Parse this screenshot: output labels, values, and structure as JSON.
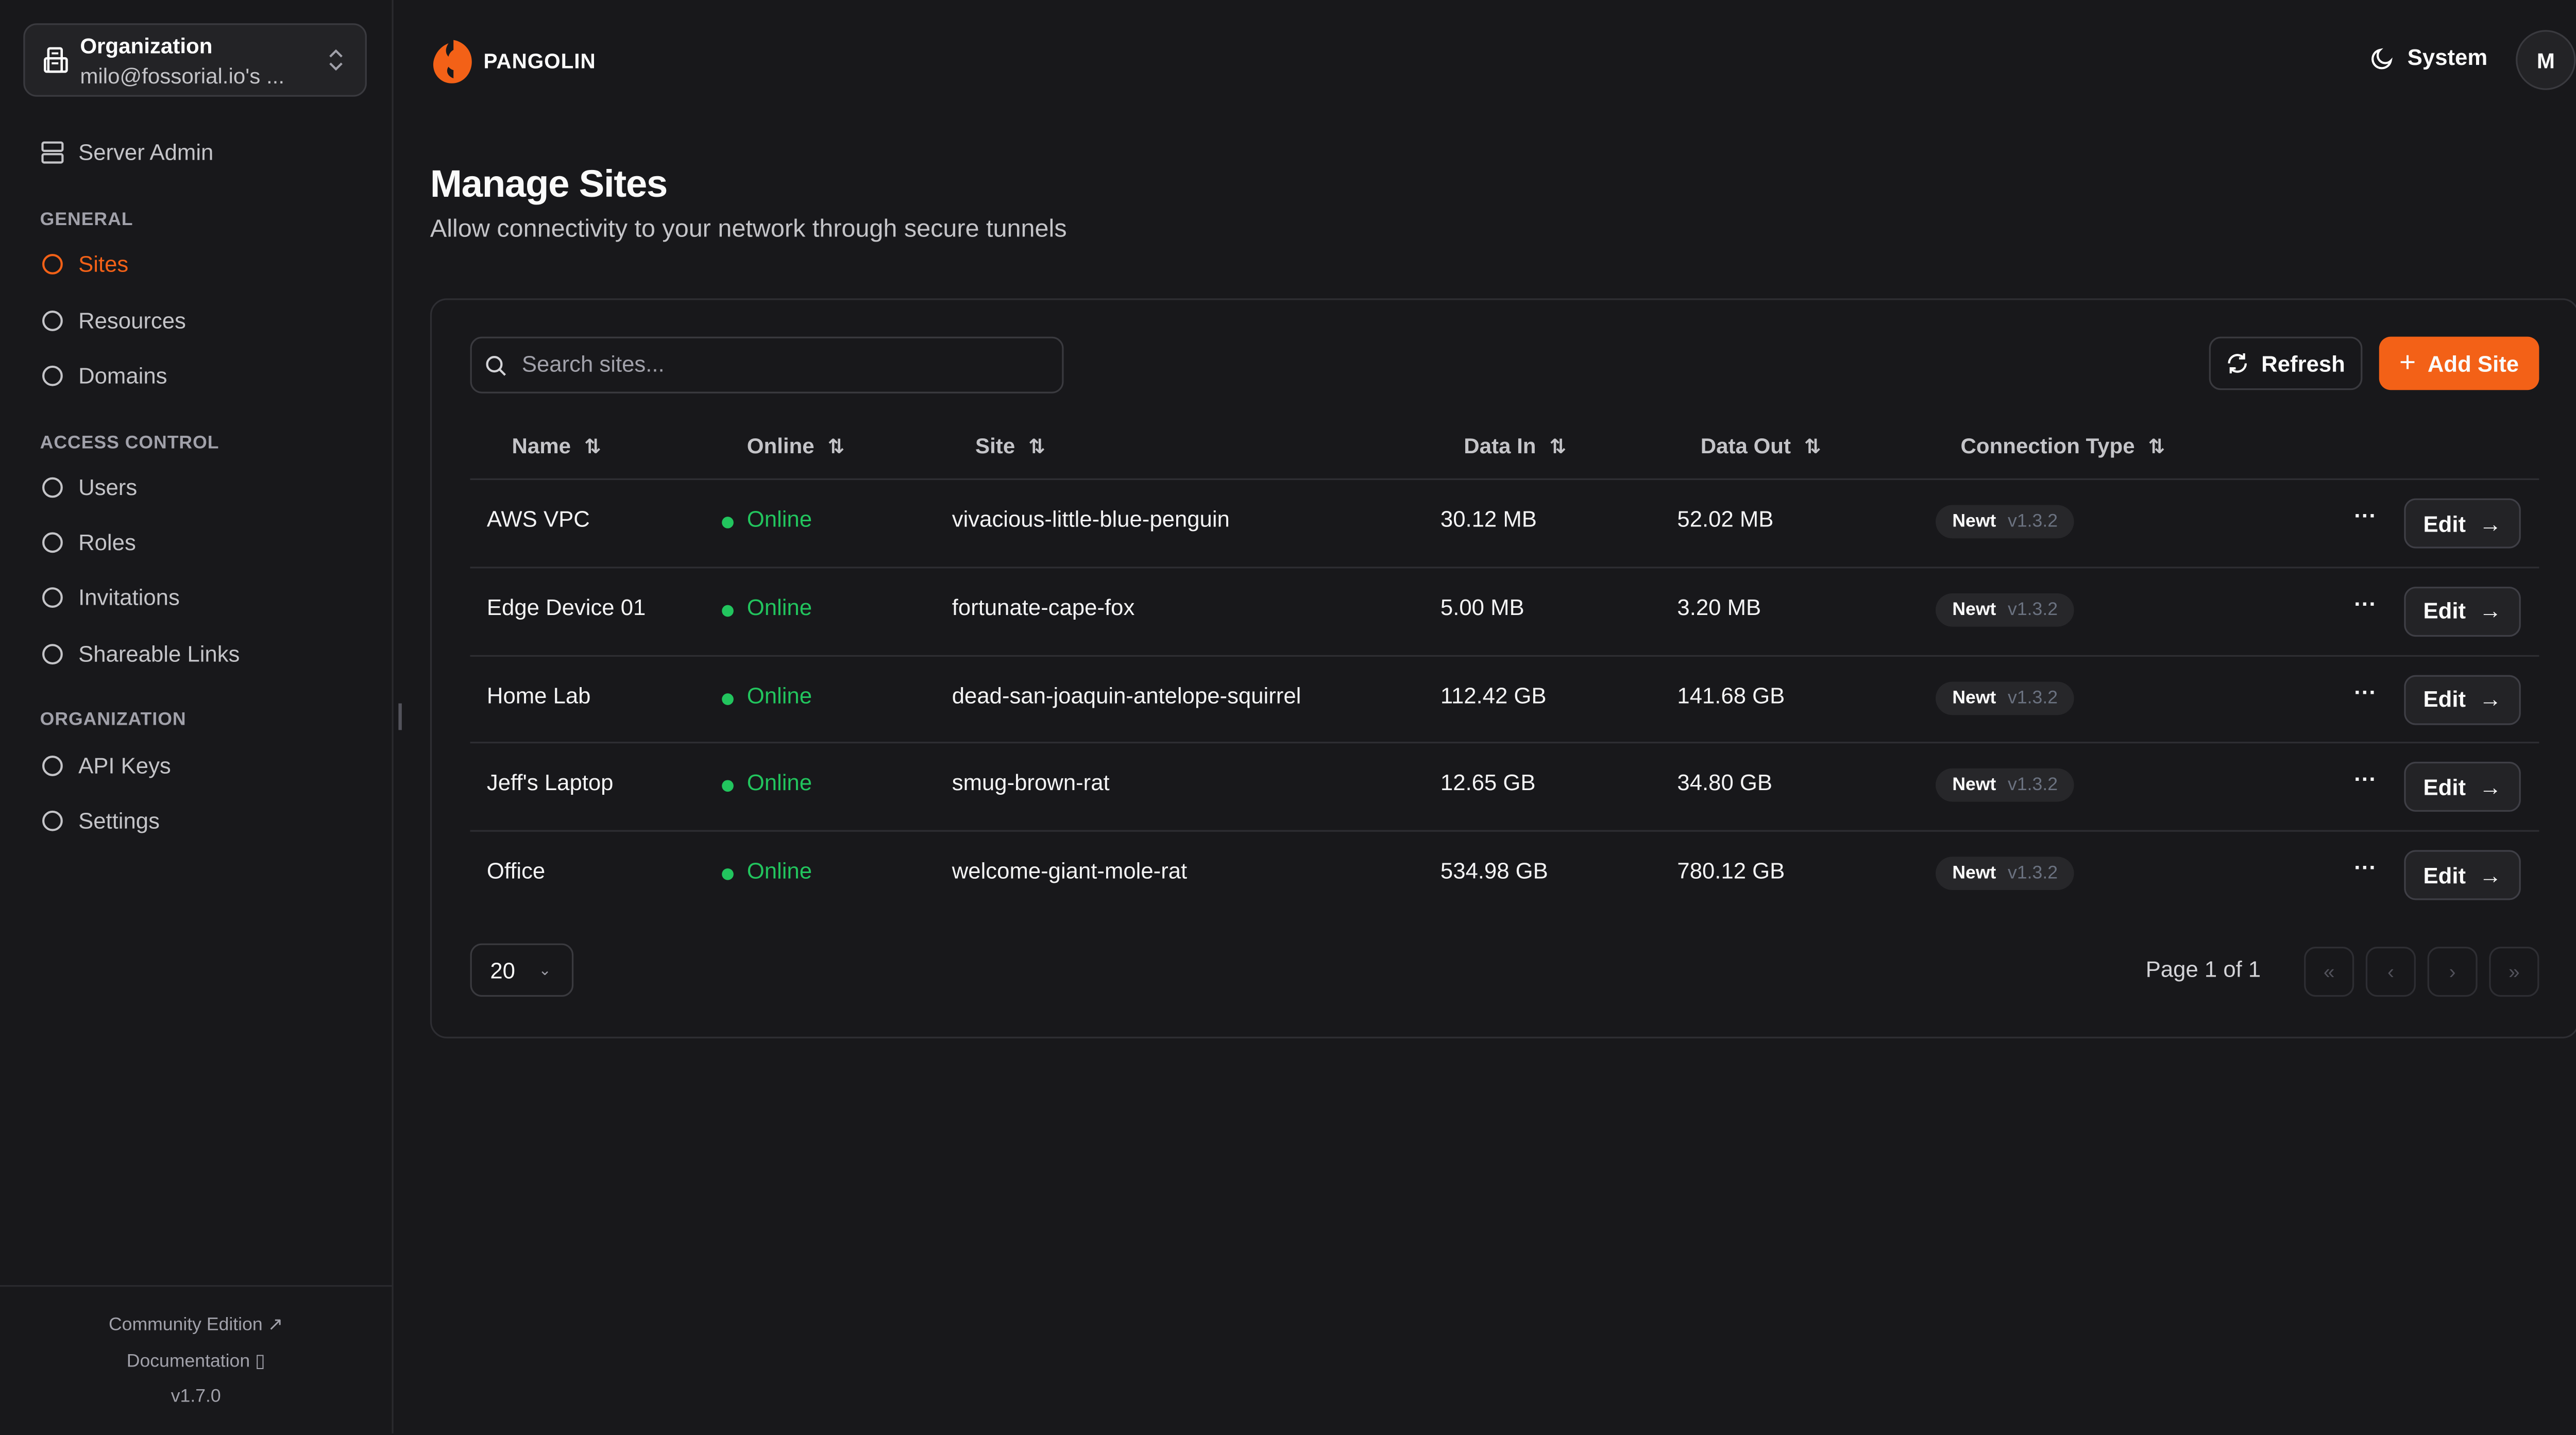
{
  "org": {
    "label": "Organization",
    "value": "milo@fossorial.io's ..."
  },
  "sidebar": {
    "server_admin": "Server Admin",
    "sections": [
      {
        "title": "GENERAL",
        "items": [
          {
            "label": "Sites",
            "icon": "sites-icon",
            "active": true
          },
          {
            "label": "Resources",
            "icon": "resources-icon"
          },
          {
            "label": "Domains",
            "icon": "globe-icon"
          }
        ]
      },
      {
        "title": "ACCESS CONTROL",
        "items": [
          {
            "label": "Users",
            "icon": "user-icon"
          },
          {
            "label": "Roles",
            "icon": "users-icon"
          },
          {
            "label": "Invitations",
            "icon": "mail-icon"
          },
          {
            "label": "Shareable Links",
            "icon": "link-icon"
          }
        ]
      },
      {
        "title": "ORGANIZATION",
        "items": [
          {
            "label": "API Keys",
            "icon": "key-icon"
          },
          {
            "label": "Settings",
            "icon": "gear-icon"
          }
        ]
      }
    ],
    "footer": {
      "community": "Community Edition",
      "docs": "Documentation",
      "version": "v1.7.0"
    }
  },
  "header": {
    "brand": "PANGOLIN",
    "theme": "System",
    "avatar": "M"
  },
  "page": {
    "title": "Manage Sites",
    "subtitle": "Allow connectivity to your network through secure tunnels"
  },
  "toolbar": {
    "search_placeholder": "Search sites...",
    "refresh": "Refresh",
    "add": "Add Site"
  },
  "table": {
    "columns": [
      "Name",
      "Online",
      "Site",
      "Data In",
      "Data Out",
      "Connection Type"
    ],
    "rows": [
      {
        "name": "AWS VPC",
        "online": "Online",
        "site": "vivacious-little-blue-penguin",
        "data_in": "30.12 MB",
        "data_out": "52.02 MB",
        "type": "Newt",
        "version": "v1.3.2"
      },
      {
        "name": "Edge Device 01",
        "online": "Online",
        "site": "fortunate-cape-fox",
        "data_in": "5.00 MB",
        "data_out": "3.20 MB",
        "type": "Newt",
        "version": "v1.3.2"
      },
      {
        "name": "Home Lab",
        "online": "Online",
        "site": "dead-san-joaquin-antelope-squirrel",
        "data_in": "112.42 GB",
        "data_out": "141.68 GB",
        "type": "Newt",
        "version": "v1.3.2"
      },
      {
        "name": "Jeff's Laptop",
        "online": "Online",
        "site": "smug-brown-rat",
        "data_in": "12.65 GB",
        "data_out": "34.80 GB",
        "type": "Newt",
        "version": "v1.3.2"
      },
      {
        "name": "Office",
        "online": "Online",
        "site": "welcome-giant-mole-rat",
        "data_in": "534.98 GB",
        "data_out": "780.12 GB",
        "type": "Newt",
        "version": "v1.3.2"
      }
    ],
    "edit_label": "Edit"
  },
  "pagination": {
    "page_size": "20",
    "page_text": "Page 1 of 1"
  },
  "colors": {
    "accent": "#f36117",
    "online": "#22c55e",
    "background": "#18181b"
  }
}
